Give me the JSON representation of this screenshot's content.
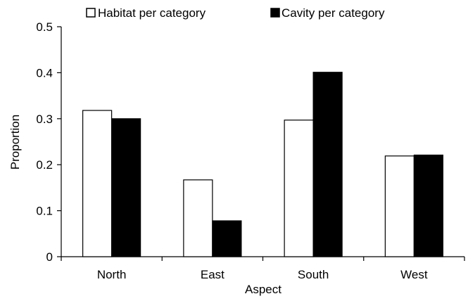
{
  "chart_data": {
    "type": "bar",
    "xlabel": "Aspect",
    "ylabel": "Proportion",
    "categories": [
      "North",
      "East",
      "South",
      "West"
    ],
    "series": [
      {
        "name": "Habitat per category",
        "color": "#ffffff",
        "values": [
          0.318,
          0.167,
          0.297,
          0.219
        ]
      },
      {
        "name": "Cavity per category",
        "color": "#000000",
        "values": [
          0.3,
          0.078,
          0.401,
          0.221
        ]
      }
    ],
    "ylim": [
      0,
      0.5
    ],
    "yticks": [
      "0",
      "0.1",
      "0.2",
      "0.3",
      "0.4",
      "0.5"
    ],
    "grid": false,
    "legend_position": "top"
  }
}
